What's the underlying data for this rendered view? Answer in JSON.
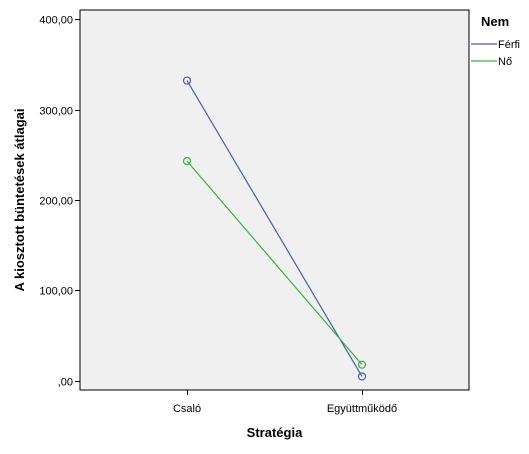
{
  "chart_data": {
    "type": "line",
    "categories": [
      "Csaló",
      "Együttműködő"
    ],
    "series": [
      {
        "name": "Férfi",
        "values": [
          332,
          5
        ],
        "color": "#4a5da8"
      },
      {
        "name": "Nő",
        "values": [
          243,
          18
        ],
        "color": "#3cb043"
      }
    ],
    "xlabel": "Stratégia",
    "ylabel": "A kiosztott büntetések átlagai",
    "ylim": [
      -10,
      410
    ],
    "yticks": [
      0,
      100,
      200,
      300,
      400
    ],
    "ytick_labels": [
      ",00",
      "100,00",
      "200,00",
      "300,00",
      "400,00"
    ],
    "legend": {
      "title": "Nem",
      "placement": "right"
    },
    "plot_background": "#f0f0f0",
    "grid": false
  }
}
